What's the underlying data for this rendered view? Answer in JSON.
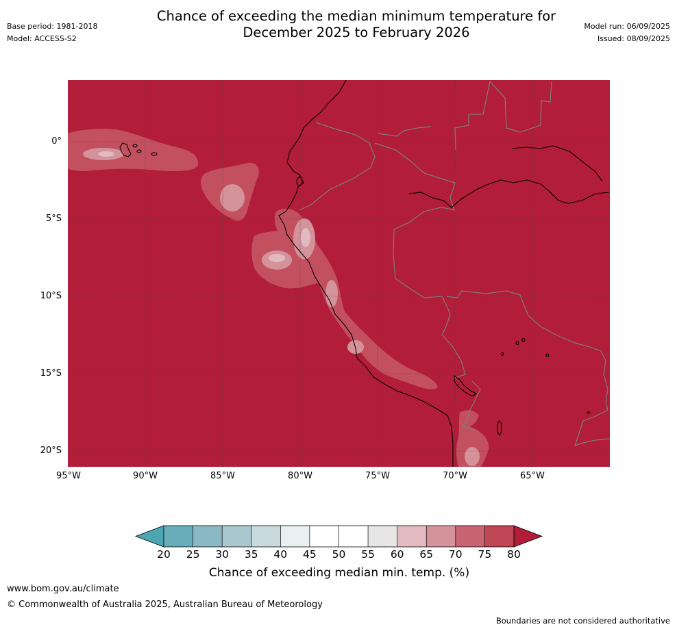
{
  "title": {
    "line1": "Chance of exceeding the median minimum temperature for",
    "line2": "December 2025 to February 2026"
  },
  "meta": {
    "base_period": "Base period: 1981-2018",
    "model": "Model: ACCESS-S2",
    "model_run": "Model run: 06/09/2025",
    "issued": "Issued: 08/09/2025"
  },
  "map": {
    "region": "Peru",
    "background_color": "#b21d39",
    "lat_ticks": [
      "0°",
      "5°S",
      "10°S",
      "15°S",
      "20°S"
    ],
    "lon_ticks": [
      "95°W",
      "90°W",
      "85°W",
      "80°W",
      "75°W",
      "70°W",
      "65°W"
    ]
  },
  "colorbar": {
    "labels": [
      "20",
      "25",
      "30",
      "35",
      "40",
      "45",
      "50",
      "55",
      "60",
      "65",
      "70",
      "75",
      "80"
    ],
    "colors": [
      "#6aadba",
      "#8ab8c4",
      "#aac9ce",
      "#c9dade",
      "#e9f0f1",
      "#ffffff",
      "#ffffff",
      "#e6e6e6",
      "#e2bac0",
      "#d4929b",
      "#c96573",
      "#bf4756"
    ],
    "low_extend_color": "#4da5b2",
    "high_extend_color": "#b21d39",
    "title": "Chance of exceeding median min. temp. (%)"
  },
  "footer": {
    "url": "www.bom.gov.au/climate",
    "copyright": "© Commonwealth of Australia 2025, Australian Bureau of Meteorology",
    "note": "Boundaries are not considered authoritative"
  }
}
